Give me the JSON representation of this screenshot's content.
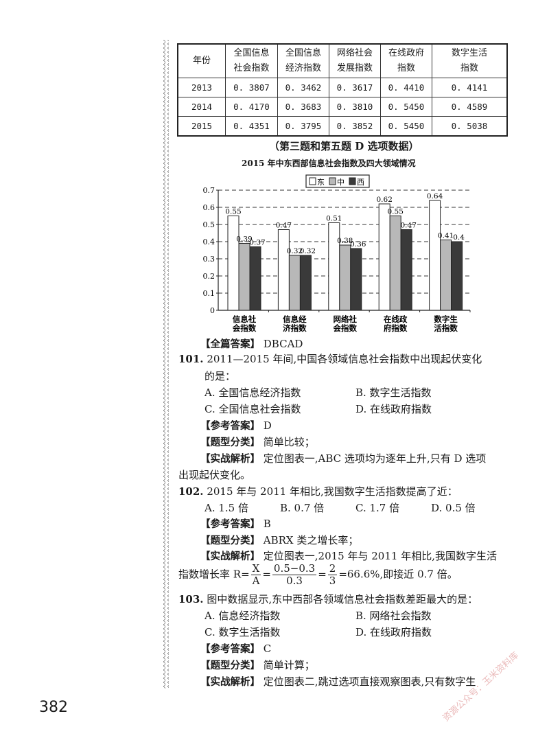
{
  "table": {
    "headers": [
      "年份",
      "全国信息\n社会指数",
      "全国信息\n经济指数",
      "网络社会\n发展指数",
      "在线政府\n指数",
      "数字生活\n指数"
    ],
    "rows": [
      [
        "2013",
        "0. 3807",
        "0. 3462",
        "0. 3617",
        "0. 4410",
        "0. 4141"
      ],
      [
        "2014",
        "0. 4170",
        "0. 3683",
        "0. 3810",
        "0. 5450",
        "0. 4589"
      ],
      [
        "2015",
        "0. 4351",
        "0. 3795",
        "0. 3852",
        "0. 5450",
        "0. 5038"
      ]
    ]
  },
  "caption": "（第三题和第五题 D 选项数据）",
  "chart_data": {
    "type": "bar",
    "title": "2015 年中东西部信息社会指数及四大领域情况",
    "categories": [
      "信息社\n会指数",
      "信息经\n济指数",
      "网络社\n会指数",
      "在线政\n府指数",
      "数字生\n活指数"
    ],
    "series": [
      {
        "name": "东",
        "values": [
          0.55,
          0.47,
          0.51,
          0.62,
          0.64
        ],
        "labels": [
          "0.55",
          "0.47",
          "0.51",
          "0.62",
          "0.64"
        ],
        "color": "#ffffff"
      },
      {
        "name": "中",
        "values": [
          0.39,
          0.32,
          0.38,
          0.55,
          0.41
        ],
        "labels": [
          "0.39",
          "0.32",
          "0.38",
          "0.55",
          "0.41"
        ],
        "color": "#b8b8b8"
      },
      {
        "name": "西",
        "values": [
          0.37,
          0.32,
          0.36,
          0.47,
          0.4
        ],
        "labels": [
          "0.37",
          "0.32",
          "0.36",
          "0.47",
          "0.4"
        ],
        "color": "#3a3a3a"
      }
    ],
    "ylim": [
      0,
      0.7
    ],
    "yticks": [
      "0",
      "0.1",
      "0.2",
      "0.3",
      "0.4",
      "0.5",
      "0.6",
      "0.7"
    ],
    "grid": true,
    "legend": "top-center"
  },
  "lines": {
    "all_answer_tag": "【全篇答案】",
    "all_answer": "DBCAD",
    "q101_num": "101.",
    "q101_text": "2011—2015 年间,中国各领域信息社会指数中出现起伏变化",
    "q101_text2": "的是：",
    "q101_a": "A.  全国信息经济指数",
    "q101_b": "B.  数字生活指数",
    "q101_c": "C.  全国信息社会指数",
    "q101_d": "D.  在线政府指数",
    "ref_tag": "【参考答案】",
    "type_tag": "【题型分类】",
    "analysis_tag": "【实战解析】",
    "q101_ans": "D",
    "q101_type": "简单比较；",
    "q101_analysis": "定位图表一,ABC 选项均为逐年上升,只有 D 选项",
    "q101_analysis2": "出现起伏变化。",
    "q102_num": "102.",
    "q102_text": "2015 年与 2011 年相比,我国数字生活指数提高了近：",
    "q102_a": "A.  1.5 倍",
    "q102_b": "B.  0.7 倍",
    "q102_c": "C.  1.7 倍",
    "q102_d": "D.  0.5 倍",
    "q102_ans": "B",
    "q102_type": "ABRX 类之增长率；",
    "q102_analysis": "定位图表一,2015 年与 2011 年相比,我国数字生活",
    "q102_f_pre": "指数增长率 R=",
    "q102_f1n": "X",
    "q102_f1d": "A",
    "q102_f2n": "0.5−0.3",
    "q102_f2d": "0.3",
    "q102_f3n": "2",
    "q102_f3d": "3",
    "q102_f_post": "=66.6%,即接近 0.7 倍。",
    "q103_num": "103.",
    "q103_text": "图中数据显示,东中西部各领域信息社会指数差距最大的是：",
    "q103_a": "A.  信息经济指数",
    "q103_b": "B.  网络社会指数",
    "q103_c": "C.  数字生活指数",
    "q103_d": "D.  在线政府指数",
    "q103_ans": "C",
    "q103_type": "简单计算；",
    "q103_analysis": "定位图表二,跳过选项直接观察图表,只有数字生"
  },
  "page_number": "382",
  "watermark": "资源公众号：玉米资料库"
}
